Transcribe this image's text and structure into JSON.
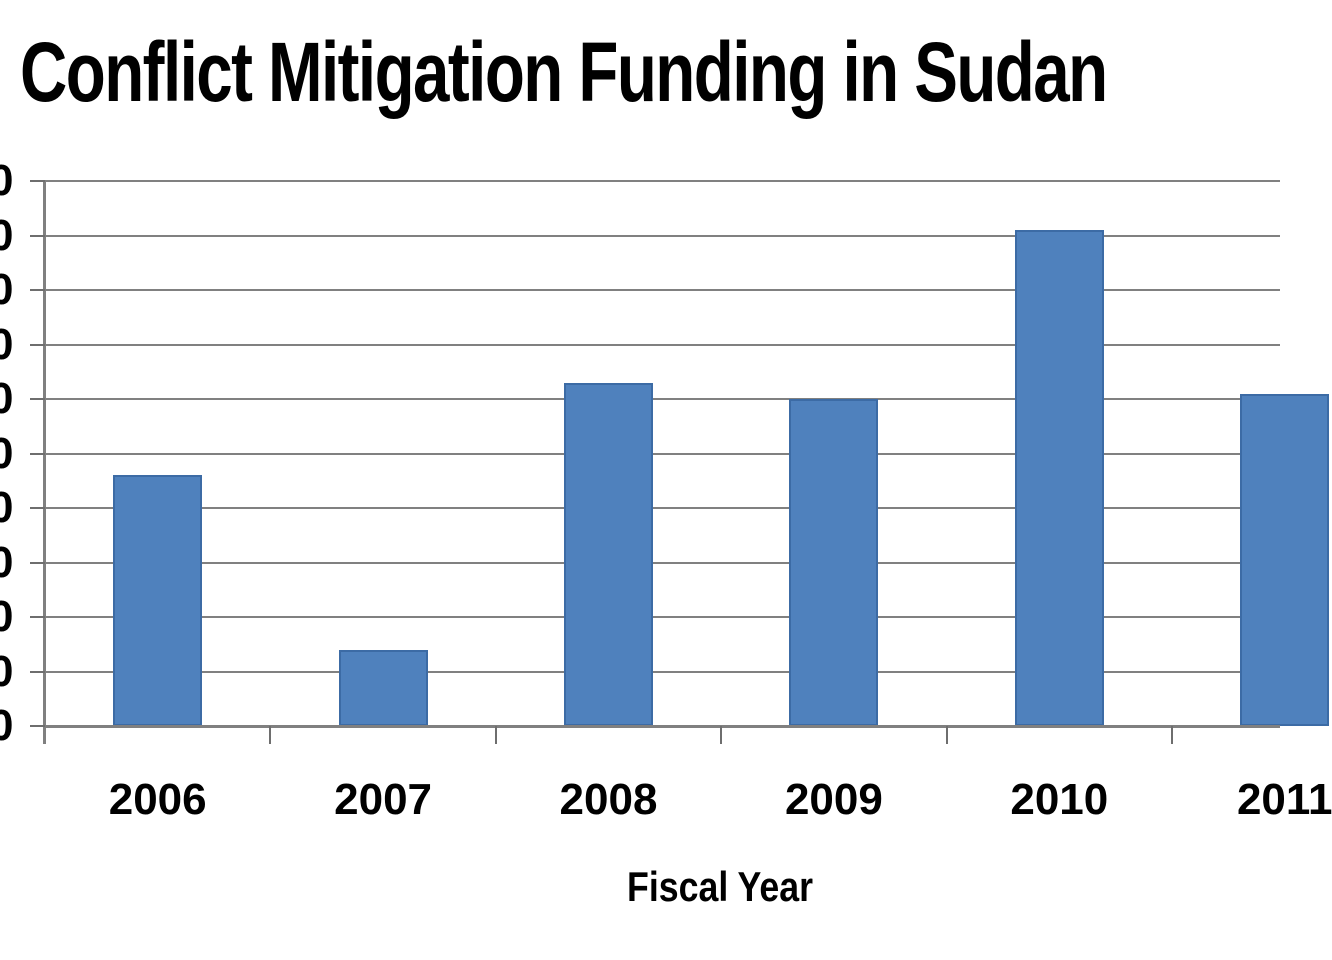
{
  "chart_data": {
    "type": "bar",
    "title": "Conflict Mitigation Funding in Sudan",
    "xlabel": "Fiscal Year",
    "ylabel": "",
    "categories": [
      "2006",
      "2007",
      "2008",
      "2009",
      "2010",
      "2011"
    ],
    "values": [
      4.6,
      1.4,
      6.3,
      6.0,
      9.1,
      6.1
    ],
    "value_units": "gridline intervals (numeric y-axis labels are cropped off the left edge of the image)",
    "ylim": [
      0,
      10
    ],
    "y_tick_count": 11,
    "y_tick_label_visible_fragment": "0",
    "grid": true,
    "legend": false,
    "layout_notes": "2011 bar and its axis label are clipped by the right image edge; single data series; no legend",
    "colors": {
      "bar_fill": "#4F81BD",
      "bar_border": "#3C6BA5",
      "gridline": "#808080",
      "axis": "#808080",
      "tick": "#6E6E6E",
      "text": "#000000",
      "background": "#FFFFFF"
    }
  }
}
